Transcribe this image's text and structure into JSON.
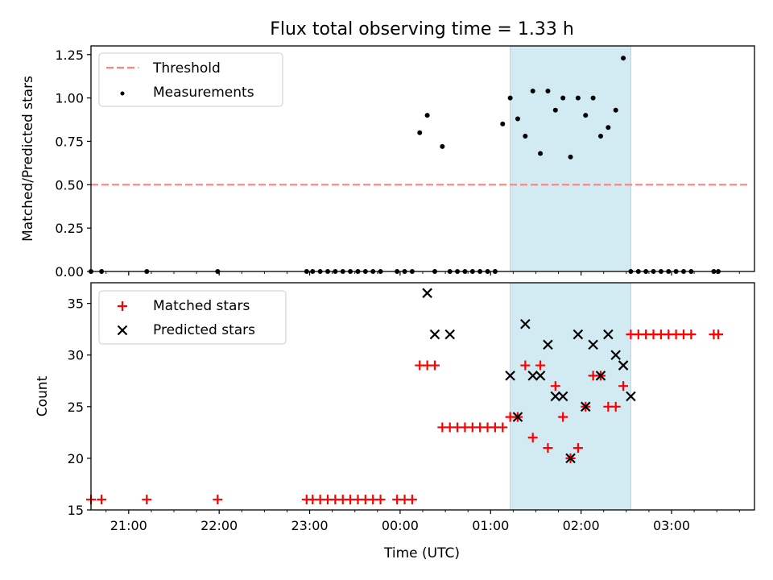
{
  "figure": {
    "title": "Flux total observing time = 1.33 h"
  },
  "colors": {
    "threshold": "#ff8080",
    "highlight": "#add8e6",
    "measurement": "#000000",
    "matched": "#ff0000",
    "predicted": "#000000",
    "axis": "#000000"
  },
  "chart_data": [
    {
      "type": "scatter",
      "title": "Flux total observing time = 1.33 h",
      "xlabel": "",
      "ylabel": "Matched/Predicted stars",
      "xlim": [
        "20:35",
        "03:55"
      ],
      "ylim": [
        0,
        1.3
      ],
      "yticks": [
        "0.00",
        "0.25",
        "0.50",
        "0.75",
        "1.00",
        "1.25"
      ],
      "x_major_ticks": [
        "21:00",
        "22:00",
        "23:00",
        "00:00",
        "01:00",
        "02:00",
        "03:00"
      ],
      "highlight_span": [
        "01:13",
        "02:33"
      ],
      "legend": {
        "position": "top-left",
        "entries": [
          "Threshold",
          "Measurements"
        ]
      },
      "series": [
        {
          "name": "Threshold",
          "kind": "dashed-line",
          "x": [
            "20:35",
            "03:52"
          ],
          "y": [
            0.5,
            0.5
          ]
        },
        {
          "name": "Measurements",
          "kind": "points",
          "x": [
            "20:35",
            "20:42",
            "21:12",
            "21:59",
            "22:58",
            "23:02",
            "23:07",
            "23:12",
            "23:17",
            "23:22",
            "23:27",
            "23:32",
            "23:37",
            "23:42",
            "23:47",
            "23:58",
            "00:03",
            "00:08",
            "00:13",
            "00:18",
            "00:23",
            "00:28",
            "00:33",
            "00:38",
            "00:43",
            "00:48",
            "00:53",
            "00:58",
            "01:03",
            "01:08",
            "01:13",
            "01:18",
            "01:23",
            "01:28",
            "01:33",
            "01:38",
            "01:43",
            "01:48",
            "01:53",
            "01:58",
            "02:03",
            "02:08",
            "02:13",
            "02:18",
            "02:23",
            "02:28",
            "02:33",
            "02:38",
            "02:43",
            "02:48",
            "02:53",
            "02:58",
            "03:03",
            "03:08",
            "03:13",
            "03:28",
            "03:31"
          ],
          "y": [
            0,
            0,
            0,
            0,
            0,
            0,
            0,
            0,
            0,
            0,
            0,
            0,
            0,
            0,
            0,
            0,
            0,
            0,
            0.8,
            0.9,
            0,
            0.72,
            0,
            0,
            0,
            0,
            0,
            0,
            0,
            0.85,
            1.0,
            0.88,
            0.78,
            1.04,
            0.68,
            1.04,
            0.93,
            1.0,
            0.66,
            1.0,
            0.9,
            1.0,
            0.78,
            0.83,
            0.93,
            1.23,
            0,
            0,
            0,
            0,
            0,
            0,
            0,
            0,
            0,
            0,
            0
          ]
        }
      ]
    },
    {
      "type": "scatter",
      "title": "",
      "xlabel": "Time (UTC)",
      "ylabel": "Count",
      "xlim": [
        "20:35",
        "03:55"
      ],
      "ylim": [
        15,
        37
      ],
      "yticks": [
        "15",
        "20",
        "25",
        "30",
        "35"
      ],
      "x_major_ticks": [
        "21:00",
        "22:00",
        "23:00",
        "00:00",
        "01:00",
        "02:00",
        "03:00"
      ],
      "highlight_span": [
        "01:13",
        "02:33"
      ],
      "legend": {
        "position": "top-left",
        "entries": [
          "Matched stars",
          "Predicted stars"
        ]
      },
      "series": [
        {
          "name": "Matched stars",
          "marker": "plus",
          "x": [
            "20:35",
            "20:42",
            "21:12",
            "21:59",
            "22:58",
            "23:02",
            "23:07",
            "23:12",
            "23:17",
            "23:22",
            "23:27",
            "23:32",
            "23:37",
            "23:42",
            "23:47",
            "23:58",
            "00:03",
            "00:08",
            "00:13",
            "00:18",
            "00:23",
            "00:28",
            "00:33",
            "00:38",
            "00:43",
            "00:48",
            "00:53",
            "00:58",
            "01:03",
            "01:08",
            "01:13",
            "01:18",
            "01:23",
            "01:28",
            "01:33",
            "01:38",
            "01:43",
            "01:48",
            "01:53",
            "01:58",
            "02:03",
            "02:08",
            "02:13",
            "02:18",
            "02:23",
            "02:28",
            "02:33",
            "02:38",
            "02:43",
            "02:48",
            "02:53",
            "02:58",
            "03:03",
            "03:08",
            "03:13",
            "03:28",
            "03:31"
          ],
          "y": [
            16,
            16,
            16,
            16,
            16,
            16,
            16,
            16,
            16,
            16,
            16,
            16,
            16,
            16,
            16,
            16,
            16,
            16,
            29,
            29,
            29,
            23,
            23,
            23,
            23,
            23,
            23,
            23,
            23,
            23,
            24,
            24,
            29,
            22,
            29,
            21,
            27,
            24,
            20,
            21,
            25,
            28,
            28,
            25,
            25,
            27,
            32,
            32,
            32,
            32,
            32,
            32,
            32,
            32,
            32,
            32,
            32
          ]
        },
        {
          "name": "Predicted stars",
          "marker": "x",
          "x": [
            "00:18",
            "00:23",
            "00:33",
            "01:13",
            "01:18",
            "01:23",
            "01:28",
            "01:33",
            "01:38",
            "01:43",
            "01:48",
            "01:53",
            "01:58",
            "02:03",
            "02:08",
            "02:13",
            "02:18",
            "02:23",
            "02:28",
            "02:33"
          ],
          "y": [
            36,
            32,
            32,
            28,
            24,
            33,
            28,
            28,
            31,
            26,
            26,
            20,
            32,
            25,
            31,
            28,
            32,
            30,
            29,
            26
          ]
        }
      ]
    }
  ]
}
